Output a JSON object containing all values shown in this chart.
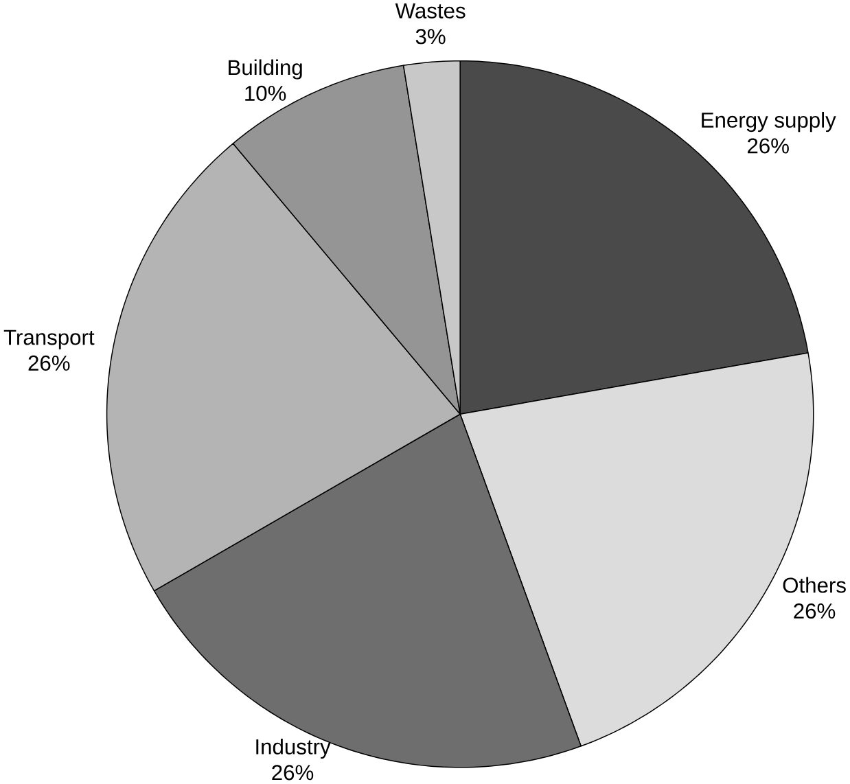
{
  "chart_data": {
    "type": "pie",
    "categories": [
      "Energy supply",
      "Others",
      "Industry",
      "Transport",
      "Building",
      "Wastes"
    ],
    "values": [
      26,
      26,
      26,
      26,
      10,
      3
    ],
    "value_labels": [
      "26%",
      "26%",
      "26%",
      "26%",
      "10%",
      "3%"
    ],
    "colors": [
      "#4a4a4a",
      "#dcdcdc",
      "#6e6e6e",
      "#b4b4b4",
      "#959595",
      "#c8c8c8"
    ]
  }
}
